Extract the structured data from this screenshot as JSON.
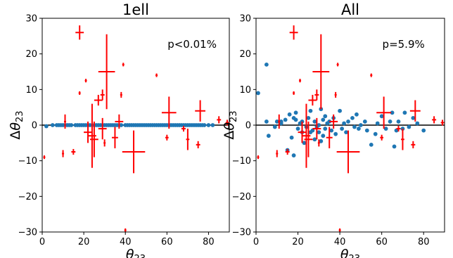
{
  "chart_data": [
    {
      "type": "scatter",
      "title": "1ell",
      "annotation": "p<0.01%",
      "xlabel": "θ23",
      "ylabel": "Δθ23",
      "xlim": [
        0,
        90
      ],
      "ylim": [
        -30,
        30
      ],
      "xticks": [
        "0",
        "20",
        "40",
        "60",
        "80"
      ],
      "yticks": [
        "−30",
        "−20",
        "−10",
        "0",
        "10",
        "20",
        "30"
      ],
      "grid": false,
      "points": [
        [
          2,
          -0.3
        ],
        [
          5,
          0
        ],
        [
          7,
          0
        ],
        [
          8,
          0
        ],
        [
          9,
          0
        ],
        [
          10,
          0
        ],
        [
          12,
          0
        ],
        [
          13,
          0
        ],
        [
          14,
          0
        ],
        [
          16,
          0
        ],
        [
          17,
          0
        ],
        [
          18,
          0
        ],
        [
          19,
          0
        ],
        [
          20,
          0
        ],
        [
          21,
          0
        ],
        [
          22,
          0
        ],
        [
          23,
          0
        ],
        [
          25,
          0
        ],
        [
          26,
          0
        ],
        [
          27,
          0
        ],
        [
          28,
          0
        ],
        [
          29,
          0
        ],
        [
          30,
          0
        ],
        [
          31,
          0
        ],
        [
          32,
          0
        ],
        [
          33,
          0
        ],
        [
          34,
          0
        ],
        [
          35,
          0
        ],
        [
          36,
          0
        ],
        [
          37,
          0
        ],
        [
          38,
          0
        ],
        [
          40,
          0
        ],
        [
          41,
          0
        ],
        [
          42,
          0
        ],
        [
          43,
          0
        ],
        [
          44,
          0
        ],
        [
          45,
          0
        ],
        [
          46,
          0
        ],
        [
          47,
          0
        ],
        [
          48,
          0
        ],
        [
          49,
          0
        ],
        [
          50,
          0
        ],
        [
          51,
          0
        ],
        [
          52,
          0
        ],
        [
          53,
          0
        ],
        [
          54,
          0
        ],
        [
          55,
          0
        ],
        [
          56,
          0
        ],
        [
          57,
          0
        ],
        [
          58,
          0
        ],
        [
          59,
          0
        ],
        [
          60,
          0
        ],
        [
          61,
          0
        ],
        [
          62,
          0
        ],
        [
          63,
          0
        ],
        [
          64,
          0
        ],
        [
          65,
          0
        ],
        [
          66,
          0
        ],
        [
          67,
          0
        ],
        [
          68,
          0
        ],
        [
          69,
          0
        ],
        [
          70,
          0
        ],
        [
          71,
          0
        ],
        [
          72,
          0
        ],
        [
          73,
          0
        ],
        [
          74,
          0
        ],
        [
          75,
          0
        ],
        [
          76,
          0
        ],
        [
          77,
          0
        ],
        [
          78,
          0
        ],
        [
          80,
          0
        ],
        [
          82,
          0
        ]
      ],
      "errors": [
        {
          "x": 18,
          "y": 26,
          "xerr": 2,
          "yerr": 2
        },
        {
          "x": 31,
          "y": 15,
          "xerr": 4,
          "yerr": 10.5
        },
        {
          "x": 27,
          "y": 7,
          "xerr": 2,
          "yerr": 1.5
        },
        {
          "x": 29,
          "y": 8.5,
          "xerr": 1,
          "yerr": 1.5
        },
        {
          "x": 37,
          "y": 1,
          "xerr": 2,
          "yerr": 2
        },
        {
          "x": 39,
          "y": 17,
          "xerr": 0.5,
          "yerr": 0.5
        },
        {
          "x": 38,
          "y": 8.5,
          "xerr": 0.5,
          "yerr": 0.8
        },
        {
          "x": 55,
          "y": 14,
          "xerr": 0.5,
          "yerr": 0.5
        },
        {
          "x": 61,
          "y": 3.5,
          "xerr": 3.5,
          "yerr": 4.5
        },
        {
          "x": 76,
          "y": 4,
          "xerr": 2.5,
          "yerr": 3
        },
        {
          "x": 85,
          "y": 1.5,
          "xerr": 1,
          "yerr": 1
        },
        {
          "x": 89,
          "y": 0.7,
          "xerr": 0.8,
          "yerr": 0.8
        },
        {
          "x": 22,
          "y": -2,
          "xerr": 2,
          "yerr": 3
        },
        {
          "x": 24,
          "y": -3,
          "xerr": 2,
          "yerr": 9
        },
        {
          "x": 25,
          "y": -4,
          "xerr": 2,
          "yerr": 5
        },
        {
          "x": 29,
          "y": -1,
          "xerr": 2,
          "yerr": 3
        },
        {
          "x": 30,
          "y": -5,
          "xerr": 0.5,
          "yerr": 1
        },
        {
          "x": 35,
          "y": -3.5,
          "xerr": 1.5,
          "yerr": 3
        },
        {
          "x": 44,
          "y": -7.5,
          "xerr": 5.5,
          "yerr": 6
        },
        {
          "x": 40,
          "y": -29.5,
          "xerr": 0.5,
          "yerr": 0.5
        },
        {
          "x": 60,
          "y": -3.5,
          "xerr": 0.8,
          "yerr": 0.8
        },
        {
          "x": 70,
          "y": -4,
          "xerr": 0.8,
          "yerr": 3
        },
        {
          "x": 75,
          "y": -5.5,
          "xerr": 1,
          "yerr": 1
        },
        {
          "x": 10,
          "y": -8,
          "xerr": 0.5,
          "yerr": 1
        },
        {
          "x": 15,
          "y": -7.5,
          "xerr": 1,
          "yerr": 0.8
        },
        {
          "x": 1,
          "y": -9,
          "xerr": 0.5,
          "yerr": 0.5
        },
        {
          "x": 68,
          "y": -1,
          "xerr": 1,
          "yerr": 0.8
        },
        {
          "x": 18,
          "y": 9,
          "xerr": 0.4,
          "yerr": 0.5
        },
        {
          "x": 21,
          "y": 12.5,
          "xerr": 0.4,
          "yerr": 0.5
        },
        {
          "x": 11,
          "y": 1,
          "xerr": 0.5,
          "yerr": 2
        }
      ]
    },
    {
      "type": "scatter",
      "title": "All",
      "annotation": "p=5.9%",
      "xlabel": "θ23",
      "ylabel": "Δθ23",
      "xlim": [
        0,
        90
      ],
      "ylim": [
        -30,
        30
      ],
      "xticks": [
        "0",
        "20",
        "40",
        "60",
        "80"
      ],
      "yticks": [
        "−30",
        "−20",
        "−10",
        "0",
        "10",
        "20",
        "30"
      ],
      "grid": false,
      "points": [
        [
          1,
          9
        ],
        [
          5,
          17
        ],
        [
          5,
          1
        ],
        [
          6,
          -3
        ],
        [
          10,
          1
        ],
        [
          12,
          0.5
        ],
        [
          14,
          1.5
        ],
        [
          16,
          3
        ],
        [
          18,
          2
        ],
        [
          19,
          1.5
        ],
        [
          19,
          3.5
        ],
        [
          20,
          -1
        ],
        [
          21,
          0.5
        ],
        [
          22,
          -2
        ],
        [
          22,
          1
        ],
        [
          24,
          -0.5
        ],
        [
          25,
          2
        ],
        [
          26,
          4
        ],
        [
          26,
          -2
        ],
        [
          27,
          -1.5
        ],
        [
          28,
          -4
        ],
        [
          28,
          1
        ],
        [
          29,
          -0.5
        ],
        [
          30,
          0
        ],
        [
          30,
          -2
        ],
        [
          31,
          4.5
        ],
        [
          31,
          -4.5
        ],
        [
          32,
          -3
        ],
        [
          32,
          1.5
        ],
        [
          33,
          -1
        ],
        [
          33,
          2.5
        ],
        [
          34,
          0.5
        ],
        [
          35,
          1
        ],
        [
          36,
          -1.5
        ],
        [
          37,
          2
        ],
        [
          38,
          -2.5
        ],
        [
          40,
          4
        ],
        [
          41,
          -1
        ],
        [
          42,
          0.5
        ],
        [
          43,
          -2
        ],
        [
          44,
          1
        ],
        [
          46,
          2
        ],
        [
          47,
          -0.5
        ],
        [
          48,
          3
        ],
        [
          49,
          -1
        ],
        [
          50,
          0
        ],
        [
          52,
          1
        ],
        [
          53,
          -1.5
        ],
        [
          55,
          -5.5
        ],
        [
          57,
          -2.5
        ],
        [
          58,
          0.5
        ],
        [
          60,
          2.5
        ],
        [
          62,
          -1
        ],
        [
          64,
          1
        ],
        [
          65,
          3.5
        ],
        [
          66,
          -6
        ],
        [
          67,
          -1.5
        ],
        [
          68,
          1
        ],
        [
          70,
          -1
        ],
        [
          71,
          3.5
        ],
        [
          73,
          -0.5
        ],
        [
          75,
          2
        ],
        [
          77,
          0.5
        ],
        [
          80,
          -1.5
        ],
        [
          17,
          -3.5
        ],
        [
          15,
          -7
        ],
        [
          18,
          -8.5
        ],
        [
          23,
          -5
        ],
        [
          12,
          1
        ],
        [
          9,
          -0.5
        ]
      ],
      "errors": [
        {
          "x": 18,
          "y": 26,
          "xerr": 2,
          "yerr": 2
        },
        {
          "x": 31,
          "y": 15,
          "xerr": 4,
          "yerr": 10.5
        },
        {
          "x": 27,
          "y": 7,
          "xerr": 2,
          "yerr": 1.5
        },
        {
          "x": 29,
          "y": 8.5,
          "xerr": 1,
          "yerr": 1.5
        },
        {
          "x": 37,
          "y": 1,
          "xerr": 2,
          "yerr": 2
        },
        {
          "x": 39,
          "y": 17,
          "xerr": 0.5,
          "yerr": 0.5
        },
        {
          "x": 38,
          "y": 8.5,
          "xerr": 0.5,
          "yerr": 0.8
        },
        {
          "x": 55,
          "y": 14,
          "xerr": 0.5,
          "yerr": 0.5
        },
        {
          "x": 61,
          "y": 3.5,
          "xerr": 3.5,
          "yerr": 4.5
        },
        {
          "x": 76,
          "y": 4,
          "xerr": 2.5,
          "yerr": 3
        },
        {
          "x": 85,
          "y": 1.5,
          "xerr": 1,
          "yerr": 1
        },
        {
          "x": 89,
          "y": 0.7,
          "xerr": 0.8,
          "yerr": 0.8
        },
        {
          "x": 22,
          "y": -2,
          "xerr": 2,
          "yerr": 3
        },
        {
          "x": 24,
          "y": -3,
          "xerr": 2,
          "yerr": 9
        },
        {
          "x": 25,
          "y": -4,
          "xerr": 2,
          "yerr": 5
        },
        {
          "x": 29,
          "y": -1,
          "xerr": 2,
          "yerr": 3
        },
        {
          "x": 30,
          "y": -5,
          "xerr": 0.5,
          "yerr": 1
        },
        {
          "x": 35,
          "y": -3.5,
          "xerr": 1.5,
          "yerr": 3
        },
        {
          "x": 44,
          "y": -7.5,
          "xerr": 5.5,
          "yerr": 6
        },
        {
          "x": 40,
          "y": -29.5,
          "xerr": 0.5,
          "yerr": 0.5
        },
        {
          "x": 60,
          "y": -3.5,
          "xerr": 0.8,
          "yerr": 0.8
        },
        {
          "x": 70,
          "y": -4,
          "xerr": 0.8,
          "yerr": 3
        },
        {
          "x": 75,
          "y": -5.5,
          "xerr": 1,
          "yerr": 1
        },
        {
          "x": 10,
          "y": -8,
          "xerr": 0.5,
          "yerr": 1
        },
        {
          "x": 15,
          "y": -7.5,
          "xerr": 1,
          "yerr": 0.8
        },
        {
          "x": 1,
          "y": -9,
          "xerr": 0.5,
          "yerr": 0.5
        },
        {
          "x": 68,
          "y": -1,
          "xerr": 1,
          "yerr": 0.8
        },
        {
          "x": 18,
          "y": 9,
          "xerr": 0.4,
          "yerr": 0.5
        },
        {
          "x": 21,
          "y": 12.5,
          "xerr": 0.4,
          "yerr": 0.5
        },
        {
          "x": 11,
          "y": 1,
          "xerr": 0.5,
          "yerr": 2
        }
      ]
    }
  ],
  "colors": {
    "points": "#1f77b4",
    "errors": "#ff0000",
    "zero_line": "#000000"
  }
}
